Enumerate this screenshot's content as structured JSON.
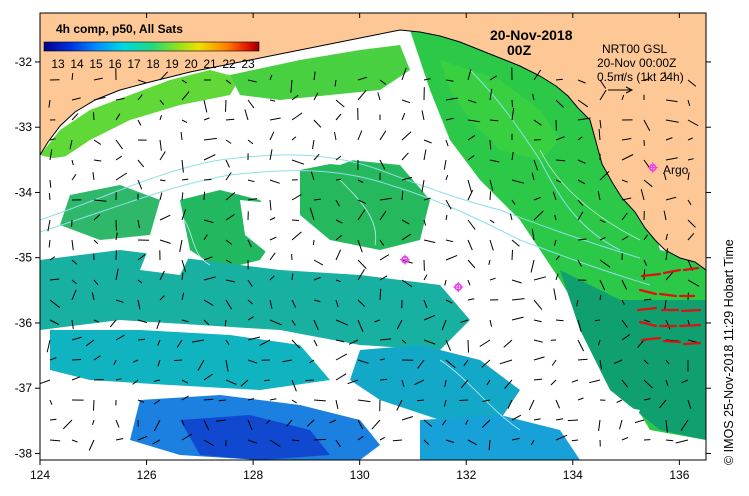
{
  "map": {
    "legend_title": "4h comp, p50, All Sats",
    "colorbar_ticks": [
      "13",
      "14",
      "15",
      "16",
      "17",
      "18",
      "19",
      "20",
      "21",
      "22",
      "23"
    ],
    "date_title": "20-Nov-2018",
    "time_title": "00Z",
    "info_line1": "NRT00 GSL",
    "info_line2": "20-Nov 00:00Z",
    "info_line3": "0.5m/s (1kt 24h)",
    "argo_label": "Argo",
    "credit": "© IMOS 25-Nov-2018 11:29 Hobart Time",
    "x_ticks": [
      "124",
      "126",
      "128",
      "130",
      "132",
      "134",
      "136"
    ],
    "y_ticks": [
      "-32",
      "-33",
      "-34",
      "-35",
      "-36",
      "-37",
      "-38"
    ],
    "lon_range": [
      124,
      136.5
    ],
    "lat_range": [
      -31.25,
      -38.1
    ],
    "argo_floats": [
      {
        "lon": 130.85,
        "lat": -35.03
      },
      {
        "lon": 131.85,
        "lat": -35.45
      },
      {
        "lon": 135.5,
        "lat": -33.62
      }
    ],
    "colors": {
      "land": "#fdc896",
      "cloud": "#ffffff",
      "argo": "#e840e8",
      "bathymetry": "#8ce0e8",
      "vectors": "#000000",
      "hf_radar": "#dd1111"
    }
  }
}
